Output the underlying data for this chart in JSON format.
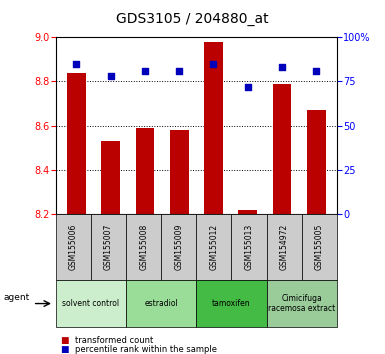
{
  "title": "GDS3105 / 204880_at",
  "samples": [
    "GSM155006",
    "GSM155007",
    "GSM155008",
    "GSM155009",
    "GSM155012",
    "GSM155013",
    "GSM154972",
    "GSM155005"
  ],
  "bar_values": [
    8.84,
    8.53,
    8.59,
    8.58,
    8.98,
    8.22,
    8.79,
    8.67
  ],
  "percentile_values": [
    85,
    78,
    81,
    81,
    85,
    72,
    83,
    81
  ],
  "ylim_left": [
    8.2,
    9.0
  ],
  "ylim_right": [
    0,
    100
  ],
  "yticks_left": [
    8.2,
    8.4,
    8.6,
    8.8,
    9.0
  ],
  "yticks_right": [
    0,
    25,
    50,
    75,
    100
  ],
  "bar_color": "#bb0000",
  "dot_color": "#0000bb",
  "groups": [
    {
      "label": "solvent control",
      "spans": [
        0,
        2
      ],
      "color": "#cceecc"
    },
    {
      "label": "estradiol",
      "spans": [
        2,
        4
      ],
      "color": "#99dd99"
    },
    {
      "label": "tamoxifen",
      "spans": [
        4,
        6
      ],
      "color": "#44bb44"
    },
    {
      "label": "Cimicifuga\nracemosa extract",
      "spans": [
        6,
        8
      ],
      "color": "#99cc99"
    }
  ],
  "xlabel_row_bg": "#cccccc",
  "legend_transformed": "transformed count",
  "legend_percentile": "percentile rank within the sample",
  "title_fontsize": 10,
  "tick_fontsize": 7,
  "sample_fontsize": 5.5,
  "group_fontsize": 5.5
}
